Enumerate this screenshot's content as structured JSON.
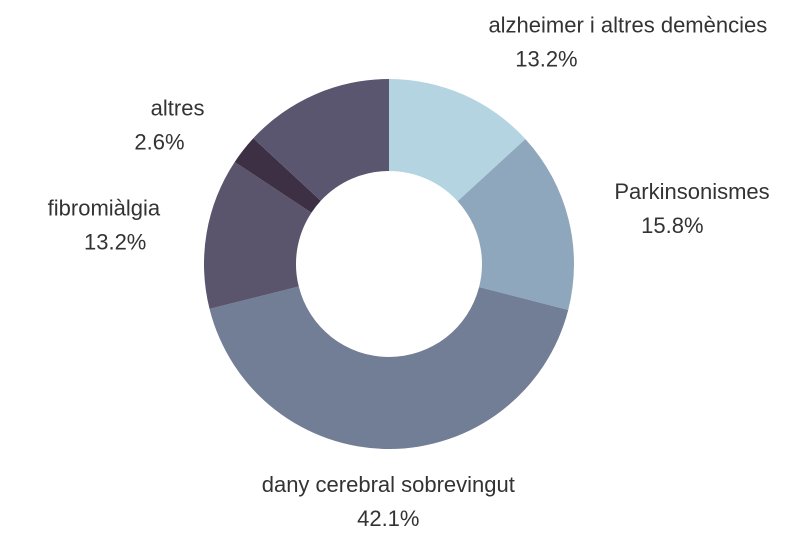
{
  "chart_data": {
    "type": "donut",
    "categories": [
      "alzheimer i altres demències",
      "Parkinsonismes",
      "dany cerebral sobrevingut",
      "fibromiàlgia",
      "altres",
      null
    ],
    "values": [
      13.2,
      15.8,
      42.1,
      13.2,
      2.6,
      13.1
    ],
    "value_labels": [
      "13.2%",
      "15.8%",
      "42.1%",
      "13.2%",
      "2.6%",
      null
    ],
    "colors": [
      "#b3d4e0",
      "#8fa7bc",
      "#727d96",
      "#5a556c",
      "#3d3045",
      "#5b5670"
    ]
  }
}
